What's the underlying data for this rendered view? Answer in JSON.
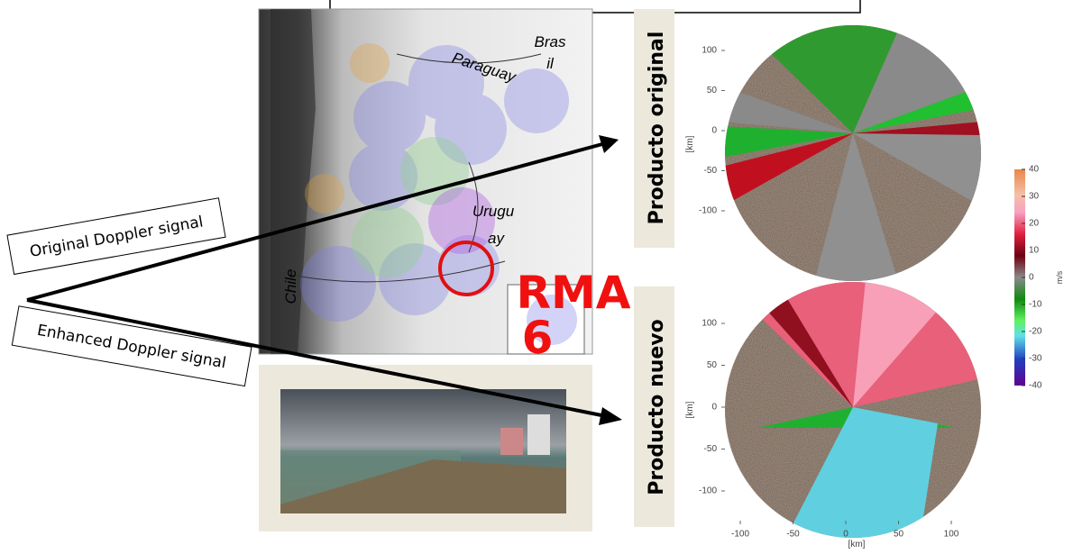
{
  "signals": {
    "original": "Original Doppler signal",
    "enhanced": "Enhanced Doppler signal"
  },
  "map": {
    "paraguay": "Paraguay",
    "brasil": [
      "Bras",
      "il"
    ],
    "uruguay": [
      "Urugu",
      "ay"
    ],
    "chile": "Chile",
    "station": [
      "RMA",
      "6"
    ]
  },
  "panels": [
    {
      "title": "Producto original",
      "y_label": "[km]",
      "yticks": [
        100,
        50,
        0,
        -50,
        -100
      ]
    },
    {
      "title": "Producto nuevo",
      "y_label": "[km]",
      "yticks": [
        100,
        50,
        0,
        -50,
        -100
      ],
      "xticks": [
        -100,
        -50,
        0,
        50,
        100
      ],
      "x_label": "[km]"
    }
  ],
  "colorbar": {
    "ticks": [
      40,
      30,
      20,
      10,
      0,
      -10,
      -20,
      -30,
      -40
    ],
    "unit": "m/s"
  }
}
